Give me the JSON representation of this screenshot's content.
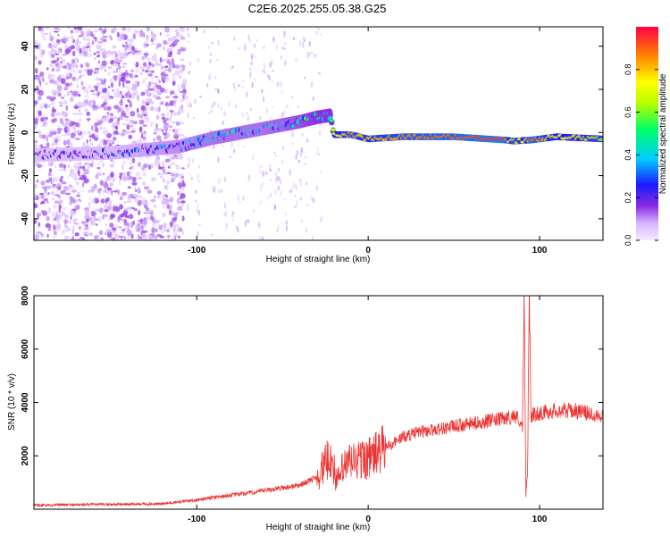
{
  "title": "C2E6.2025.255.05.38.G25",
  "chart_data": [
    {
      "type": "heatmap",
      "title": "C2E6.2025.255.05.38.G25",
      "xlabel": "Height of straight line (km)",
      "ylabel": "Frequency (Hz)",
      "xlim": [
        -195,
        137
      ],
      "ylim": [
        -50,
        49
      ],
      "xticks": [
        -100,
        0,
        100
      ],
      "yticks": [
        -40,
        -20,
        0,
        20,
        40
      ],
      "colorbar": {
        "label": "Normalized spectral amplitude",
        "range": [
          0,
          1
        ],
        "ticks": [
          0.0,
          0.2,
          0.4,
          0.6,
          0.8
        ]
      },
      "ridge": [
        {
          "x": -195,
          "f": -10.5,
          "amp": 0.18
        },
        {
          "x": -150,
          "f": -9.5,
          "amp": 0.22
        },
        {
          "x": -110,
          "f": -6.5,
          "amp": 0.3
        },
        {
          "x": -90,
          "f": -2.5,
          "amp": 0.35
        },
        {
          "x": -60,
          "f": 2.0,
          "amp": 0.35
        },
        {
          "x": -40,
          "f": 5.0,
          "amp": 0.4
        },
        {
          "x": -30,
          "f": 7.0,
          "amp": 0.45
        },
        {
          "x": -22,
          "f": 8.0,
          "amp": 0.45
        },
        {
          "x": -20,
          "f": -1.0,
          "amp": 0.7
        },
        {
          "x": -10,
          "f": -1.0,
          "amp": 0.85
        },
        {
          "x": 0,
          "f": -3.0,
          "amp": 0.8
        },
        {
          "x": 20,
          "f": -2.0,
          "amp": 0.85
        },
        {
          "x": 50,
          "f": -2.0,
          "amp": 0.9
        },
        {
          "x": 80,
          "f": -3.5,
          "amp": 0.95
        },
        {
          "x": 85,
          "f": -4.0,
          "amp": 0.5
        },
        {
          "x": 95,
          "f": -3.5,
          "amp": 0.9
        },
        {
          "x": 110,
          "f": -2.0,
          "amp": 0.75
        },
        {
          "x": 137,
          "f": -3.0,
          "amp": 0.55
        }
      ]
    },
    {
      "type": "line",
      "xlabel": "Height of straight line (km)",
      "ylabel": "SNR (10 * v/v)",
      "xlim": [
        -195,
        137
      ],
      "ylim": [
        0,
        8000
      ],
      "xticks": [
        -100,
        0,
        100
      ],
      "yticks": [
        2000,
        4000,
        6000,
        8000
      ],
      "color": "#ee3333",
      "series": [
        {
          "x": [
            -195,
            -150,
            -120,
            -100,
            -90,
            -70,
            -60,
            -40,
            -30,
            -22,
            -18,
            -15,
            -10,
            0,
            10,
            20,
            30,
            40,
            50,
            60,
            70,
            80,
            85,
            88,
            90,
            91,
            92,
            93,
            94,
            95,
            100,
            110,
            120,
            137
          ],
          "y": [
            150,
            180,
            200,
            350,
            450,
            600,
            700,
            900,
            1200,
            2000,
            1000,
            1500,
            1800,
            1900,
            2300,
            2700,
            2900,
            3000,
            3100,
            3200,
            3300,
            3400,
            3500,
            3400,
            3000,
            8000,
            500,
            1500,
            7900,
            3500,
            3600,
            3700,
            3700,
            3500
          ]
        }
      ]
    }
  ]
}
